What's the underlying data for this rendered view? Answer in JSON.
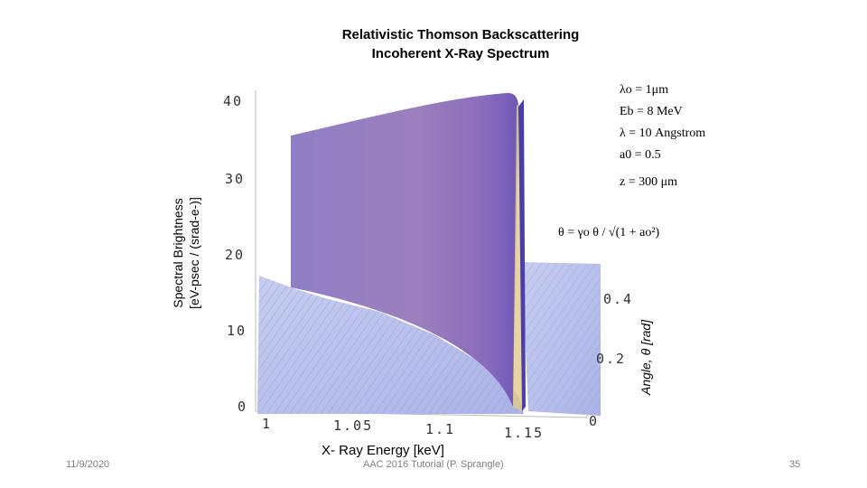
{
  "slide": {
    "title_line1": "Relativistic Thomson Backscattering",
    "title_line2": "Incoherent X-Ray Spectrum",
    "footer_date": "11/9/2020",
    "footer_center": "AAC 2016 Tutorial (P. Sprangle)",
    "footer_page": "35"
  },
  "chart_data": {
    "type": "surface",
    "ylabel_line1": "Spectral Brightness",
    "ylabel_line2": "[eV-psec / (srad-e-)]",
    "xlabel": "X- Ray Energy [keV]",
    "zlabel": "Angle, θ [rad]",
    "y_ticks": [
      "0",
      "10",
      "20",
      "30",
      "40"
    ],
    "x_ticks": [
      "1",
      "1.05",
      "1.1",
      "1.15"
    ],
    "angle_ticks": [
      "0",
      "0.2",
      "0.4"
    ],
    "ylim": [
      0,
      40
    ],
    "xlim": [
      1,
      1.16
    ],
    "angle_lim": [
      0,
      0.5
    ],
    "peak": {
      "energy_keV": 1.16,
      "brightness": 43
    },
    "ridge_start": {
      "energy_keV": 1.0,
      "brightness": 35
    },
    "colors": {
      "surface": "#8e74c0",
      "surface_light": "#b8bfe9",
      "edge": "#e2c889"
    }
  },
  "parameters": {
    "lambda0": "λo = 1μm",
    "Eb": "Eb = 8 MeV",
    "lambda": "λ = 10 Angstrom",
    "a0": "a0 = 0.5",
    "z": "z = 300 μm",
    "formula": "θ = γo θ / √(1 + ao²)"
  }
}
